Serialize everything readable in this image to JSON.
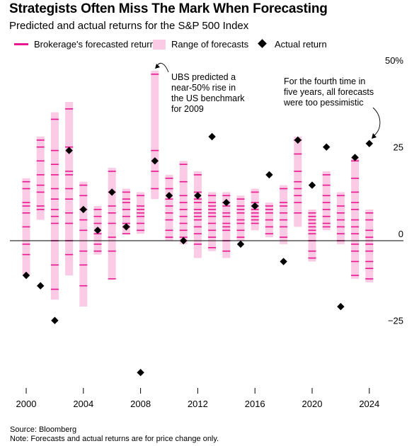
{
  "header": {
    "title": "Strategists Often Miss The Mark When Forecasting",
    "subtitle": "Predicted and actual returns for the S&P 500 Index"
  },
  "legend": {
    "forecast_label": "Brokerage's forecasted return",
    "range_label": "Range of forecasts",
    "actual_label": "Actual return"
  },
  "footer": {
    "source": "Source: Bloomberg",
    "note": "Note: Forecasts and actual returns are for price change only."
  },
  "colors": {
    "forecast_tick": "#e8168f",
    "range_fill": "#fbcbe5",
    "actual_marker": "#000000",
    "zero_line": "#000000"
  },
  "chart_data": {
    "type": "range-bar",
    "title": "Strategists Often Miss The Mark When Forecasting",
    "subtitle": "Predicted and actual returns for the S&P 500 Index",
    "x_tick_labels": [
      "2000",
      "2004",
      "2008",
      "2012",
      "2016",
      "2020",
      "2024"
    ],
    "y_tick_labels": [
      "50%",
      "25",
      "0",
      "−25"
    ],
    "y_ticks": [
      50,
      25,
      0,
      -25
    ],
    "ylim": [
      -44,
      50
    ],
    "grid": false,
    "legend_position": "top",
    "series": [
      {
        "name": "Range of forecasts",
        "data": [
          {
            "year": 2000,
            "low": -10,
            "high": 18
          },
          {
            "year": 2001,
            "low": 6,
            "high": 30
          },
          {
            "year": 2002,
            "low": -17,
            "high": 37
          },
          {
            "year": 2003,
            "low": -10,
            "high": 40
          },
          {
            "year": 2004,
            "low": -19,
            "high": 17
          },
          {
            "year": 2005,
            "low": -4,
            "high": 10
          },
          {
            "year": 2006,
            "low": -11,
            "high": 21
          },
          {
            "year": 2007,
            "low": 2,
            "high": 15
          },
          {
            "year": 2008,
            "low": 2,
            "high": 14
          },
          {
            "year": 2009,
            "low": 12,
            "high": 49
          },
          {
            "year": 2010,
            "low": 0,
            "high": 19
          },
          {
            "year": 2011,
            "low": -1,
            "high": 23
          },
          {
            "year": 2012,
            "low": -5,
            "high": 20
          },
          {
            "year": 2013,
            "low": -3,
            "high": 14
          },
          {
            "year": 2014,
            "low": -5,
            "high": 14
          },
          {
            "year": 2015,
            "low": 0,
            "high": 13
          },
          {
            "year": 2016,
            "low": 3,
            "high": 15
          },
          {
            "year": 2017,
            "low": 1,
            "high": 11
          },
          {
            "year": 2018,
            "low": -1,
            "high": 16
          },
          {
            "year": 2019,
            "low": 4,
            "high": 30
          },
          {
            "year": 2020,
            "low": -6,
            "high": 9
          },
          {
            "year": 2021,
            "low": 3,
            "high": 20
          },
          {
            "year": 2022,
            "low": -1,
            "high": 14
          },
          {
            "year": 2023,
            "low": -11,
            "high": 24
          },
          {
            "year": 2024,
            "low": -12,
            "high": 9
          }
        ]
      },
      {
        "name": "Brokerage's forecasted return",
        "data": [
          {
            "year": 2000,
            "values": [
              17,
              15,
              11,
              10,
              8,
              4,
              -1,
              -4
            ]
          },
          {
            "year": 2001,
            "values": [
              29,
              27,
              23,
              19,
              16,
              14,
              10,
              9
            ]
          },
          {
            "year": 2002,
            "values": [
              35,
              26,
              22,
              19,
              15,
              12,
              9,
              7,
              5,
              0,
              -7,
              -14
            ]
          },
          {
            "year": 2003,
            "values": [
              38,
              27,
              20,
              19,
              15,
              12,
              8,
              5,
              0,
              -4
            ]
          },
          {
            "year": 2004,
            "values": [
              16,
              13,
              9,
              6,
              3,
              -3,
              -7,
              -13
            ]
          },
          {
            "year": 2005,
            "values": [
              9,
              7,
              5,
              2,
              -1,
              -3
            ]
          },
          {
            "year": 2006,
            "values": [
              20,
              14,
              10,
              8,
              5,
              1,
              -3,
              -11
            ]
          },
          {
            "year": 2007,
            "values": [
              14,
              12,
              11,
              9,
              7,
              5,
              4,
              2
            ]
          },
          {
            "year": 2008,
            "values": [
              13,
              10,
              9,
              8,
              7,
              5,
              3
            ]
          },
          {
            "year": 2009,
            "values": [
              48,
              26,
              20,
              15
            ]
          },
          {
            "year": 2010,
            "values": [
              18,
              15,
              12,
              10,
              8,
              6,
              3,
              1
            ]
          },
          {
            "year": 2011,
            "values": [
              22,
              17,
              13,
              11,
              9,
              7,
              5,
              3,
              1
            ]
          },
          {
            "year": 2012,
            "values": [
              19,
              14,
              12,
              11,
              9,
              8,
              7,
              6,
              4,
              2,
              -1
            ]
          },
          {
            "year": 2013,
            "values": [
              13,
              11,
              10,
              9,
              8,
              7,
              5,
              3,
              1,
              -2
            ]
          },
          {
            "year": 2014,
            "values": [
              13,
              11,
              10,
              8,
              7,
              5,
              4,
              3,
              0,
              -3
            ]
          },
          {
            "year": 2015,
            "values": [
              12,
              10,
              9,
              8,
              6,
              5,
              3,
              1
            ]
          },
          {
            "year": 2016,
            "values": [
              14,
              11,
              10,
              9,
              8,
              7,
              6,
              5
            ]
          },
          {
            "year": 2017,
            "values": [
              10,
              9,
              8,
              6,
              4,
              2
            ]
          },
          {
            "year": 2018,
            "values": [
              15,
              11,
              10,
              8,
              6,
              4,
              1
            ]
          },
          {
            "year": 2019,
            "values": [
              29,
              25,
              20,
              17,
              15,
              13,
              11,
              8
            ]
          },
          {
            "year": 2020,
            "values": [
              8,
              7,
              6,
              5,
              4,
              3,
              2,
              0,
              -3,
              -5
            ]
          },
          {
            "year": 2021,
            "values": [
              19,
              16,
              13,
              11,
              9,
              7,
              5,
              4
            ]
          },
          {
            "year": 2022,
            "values": [
              13,
              10,
              8,
              6,
              4,
              2,
              0
            ]
          },
          {
            "year": 2023,
            "values": [
              23,
              18,
              14,
              11,
              9,
              6,
              4,
              2,
              -1,
              -3,
              -6,
              -10
            ]
          },
          {
            "year": 2024,
            "values": [
              8,
              6,
              3,
              1,
              -1,
              -3,
              -6,
              -8,
              -11
            ]
          }
        ]
      },
      {
        "name": "Actual return",
        "data": [
          {
            "year": 2000,
            "value": -10
          },
          {
            "year": 2001,
            "value": -13
          },
          {
            "year": 2002,
            "value": -23
          },
          {
            "year": 2003,
            "value": 26
          },
          {
            "year": 2004,
            "value": 9
          },
          {
            "year": 2005,
            "value": 3
          },
          {
            "year": 2006,
            "value": 14
          },
          {
            "year": 2007,
            "value": 4
          },
          {
            "year": 2008,
            "value": -38
          },
          {
            "year": 2009,
            "value": 23
          },
          {
            "year": 2010,
            "value": 13
          },
          {
            "year": 2011,
            "value": 0
          },
          {
            "year": 2012,
            "value": 13
          },
          {
            "year": 2013,
            "value": 30
          },
          {
            "year": 2014,
            "value": 11
          },
          {
            "year": 2015,
            "value": -1
          },
          {
            "year": 2016,
            "value": 10
          },
          {
            "year": 2017,
            "value": 19
          },
          {
            "year": 2018,
            "value": -6
          },
          {
            "year": 2019,
            "value": 29
          },
          {
            "year": 2020,
            "value": 16
          },
          {
            "year": 2021,
            "value": 27
          },
          {
            "year": 2022,
            "value": -19
          },
          {
            "year": 2023,
            "value": 24
          },
          {
            "year": 2024,
            "value": 28
          }
        ]
      }
    ],
    "annotations": [
      {
        "id": "ubs",
        "year": 2009,
        "value": 48,
        "lines": [
          "UBS predicted a",
          "near-50% rise in",
          "the US benchmark",
          "for 2009"
        ]
      },
      {
        "id": "fourth",
        "year": 2024,
        "value": 28,
        "lines": [
          "For the fourth time in",
          "five years, all forecasts",
          "were too pessimistic"
        ]
      }
    ]
  }
}
